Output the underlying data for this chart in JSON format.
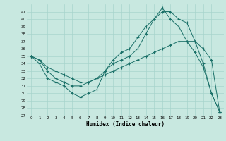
{
  "xlabel": "Humidex (Indice chaleur)",
  "bg_color": "#c8e8e0",
  "line_color": "#1a7068",
  "grid_color": "#a8d4cc",
  "xlim": [
    -0.5,
    23.5
  ],
  "ylim": [
    27,
    42
  ],
  "xticks": [
    0,
    1,
    2,
    3,
    4,
    5,
    6,
    7,
    8,
    9,
    10,
    11,
    12,
    13,
    14,
    15,
    16,
    17,
    18,
    19,
    20,
    21,
    22,
    23
  ],
  "yticks": [
    27,
    28,
    29,
    30,
    31,
    32,
    33,
    34,
    35,
    36,
    37,
    38,
    39,
    40,
    41
  ],
  "curve1_x": [
    0,
    1,
    2,
    3,
    4,
    5,
    6,
    7,
    8,
    9,
    10,
    11,
    12,
    13,
    14,
    15,
    16,
    17,
    18,
    19,
    20,
    21,
    22,
    23
  ],
  "curve1_y": [
    35,
    34,
    32,
    31.5,
    31,
    30,
    29.5,
    30,
    30.5,
    33,
    34.5,
    35.5,
    36,
    37.5,
    39,
    40,
    41,
    41,
    40,
    39.5,
    37,
    34,
    30,
    27.5
  ],
  "curve2_x": [
    0,
    1,
    2,
    3,
    4,
    5,
    6,
    7,
    8,
    9,
    10,
    11,
    12,
    13,
    14,
    15,
    16,
    17,
    18,
    19,
    20,
    21,
    22,
    23
  ],
  "curve2_y": [
    35,
    34.5,
    33,
    32,
    31.5,
    31,
    31,
    31.5,
    32,
    33,
    34,
    34.5,
    35,
    36,
    38,
    40,
    41.5,
    40,
    39,
    37,
    35.5,
    33.5,
    30,
    27.5
  ],
  "curve3_x": [
    0,
    1,
    2,
    3,
    4,
    5,
    6,
    7,
    8,
    9,
    10,
    11,
    12,
    13,
    14,
    15,
    16,
    17,
    18,
    19,
    20,
    21,
    22,
    23
  ],
  "curve3_y": [
    35,
    34.5,
    33.5,
    33,
    32.5,
    32,
    31.5,
    31.5,
    32,
    32.5,
    33,
    33.5,
    34,
    34.5,
    35,
    35.5,
    36,
    36.5,
    37,
    37,
    37,
    36,
    34.5,
    27.5
  ]
}
